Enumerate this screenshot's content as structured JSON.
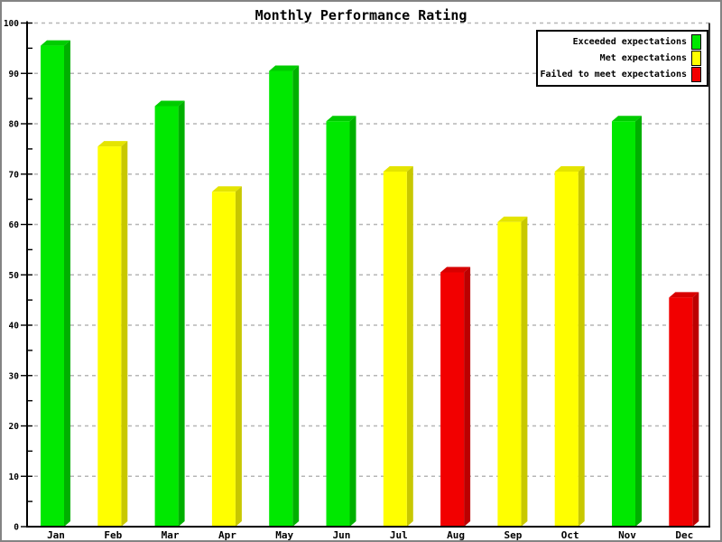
{
  "chart_data": {
    "type": "bar",
    "title": "Monthly Performance Rating",
    "categories": [
      "Jan",
      "Feb",
      "Mar",
      "Apr",
      "May",
      "Jun",
      "Jul",
      "Aug",
      "Sep",
      "Oct",
      "Nov",
      "Dec"
    ],
    "values": [
      95.5,
      75.5,
      83.5,
      66.5,
      90.5,
      80.5,
      70.5,
      50.5,
      60.5,
      70.5,
      80.5,
      45.5
    ],
    "point_series": [
      "exceeded",
      "met",
      "exceeded",
      "met",
      "exceeded",
      "exceeded",
      "met",
      "failed",
      "met",
      "met",
      "exceeded",
      "failed"
    ],
    "xlabel": "",
    "ylabel": "",
    "ylim": [
      0,
      100
    ],
    "ytick_step": 10,
    "y_minor_tick_step": 5,
    "grid": "horizontal-dashed",
    "bar_style": "3d",
    "legend_position": "top-right"
  },
  "y_axis_labels": [
    "0",
    "10",
    "20",
    "30",
    "40",
    "50",
    "60",
    "70",
    "80",
    "90",
    "100"
  ],
  "legend": {
    "items": [
      {
        "series": "exceeded",
        "label": "Exceeded expectations",
        "color": "#00e800"
      },
      {
        "series": "met",
        "label": "Met expectations",
        "color": "#ffff00"
      },
      {
        "series": "failed",
        "label": "Failed to meet expectations",
        "color": "#f20000"
      }
    ]
  },
  "colors": {
    "exceeded": {
      "front": "#00e800",
      "side": "#00b000",
      "top": "#00cc00"
    },
    "met": {
      "front": "#ffff00",
      "side": "#c8c800",
      "top": "#e4e400"
    },
    "failed": {
      "front": "#f20000",
      "side": "#bc0000",
      "top": "#d80000"
    },
    "grid": "#b6b6b6",
    "axis": "#000000",
    "background": "#ffffff",
    "outer_border": "#848484"
  }
}
